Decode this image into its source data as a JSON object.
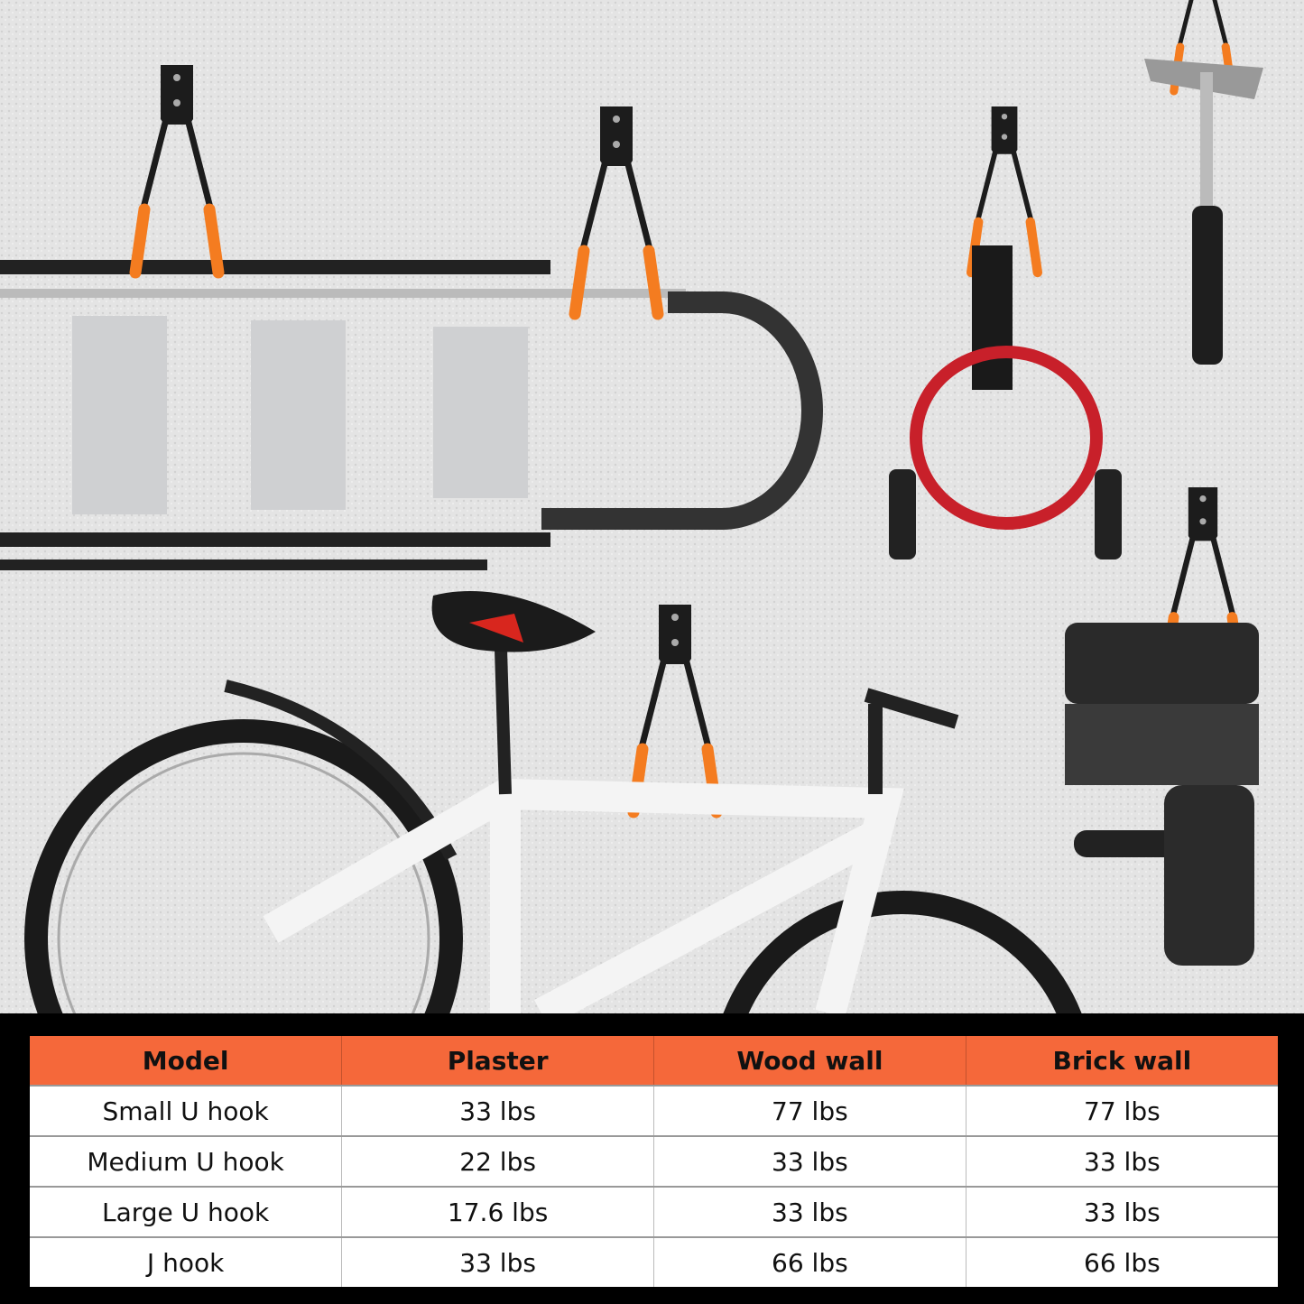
{
  "colors": {
    "header_bg": "#f5683a",
    "wall": "#e3e3e3",
    "hook_tip": "#f47c20",
    "hook_body": "#1c1c1c",
    "cable": "#c8202a"
  },
  "table": {
    "headers": [
      "Model",
      "Plaster",
      "Wood wall",
      "Brick wall"
    ],
    "rows": [
      [
        "Small U hook",
        "33 lbs",
        "77 lbs",
        "77 lbs"
      ],
      [
        "Medium U hook",
        "22 lbs",
        "33 lbs",
        "33 lbs"
      ],
      [
        "Large U hook",
        "17.6 lbs",
        "33 lbs",
        "33 lbs"
      ],
      [
        "J hook",
        "33 lbs",
        "66 lbs",
        "66 lbs"
      ]
    ]
  }
}
